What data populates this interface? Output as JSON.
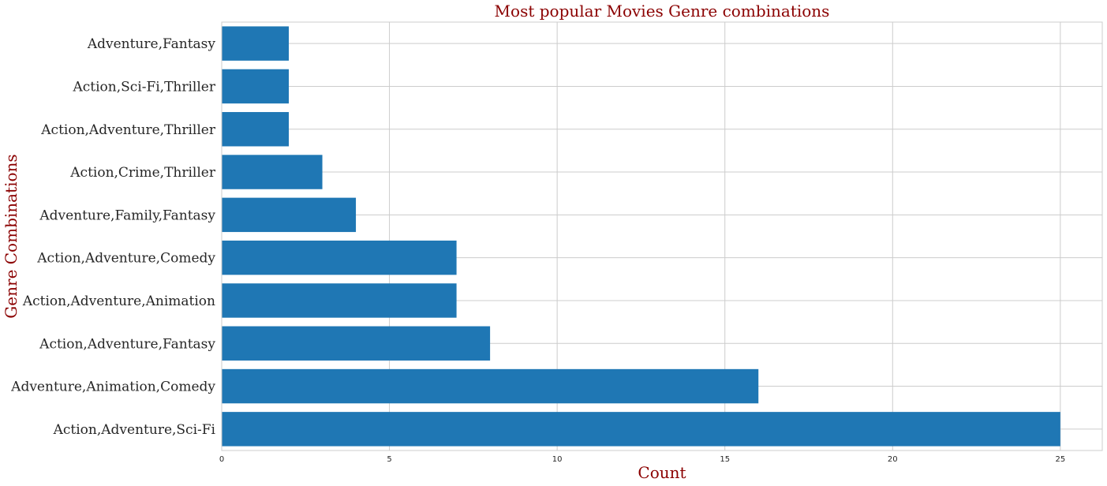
{
  "chart_data": {
    "type": "bar",
    "orientation": "horizontal",
    "title": "Most popular Movies Genre combinations",
    "xlabel": "Count",
    "ylabel": "Genre Combinations",
    "categories": [
      "Action,Adventure,Sci-Fi",
      "Adventure,Animation,Comedy",
      "Action,Adventure,Fantasy",
      "Action,Adventure,Animation",
      "Action,Adventure,Comedy",
      "Adventure,Family,Fantasy",
      "Action,Crime,Thriller",
      "Action,Adventure,Thriller",
      "Action,Sci-Fi,Thriller",
      "Adventure,Fantasy"
    ],
    "values": [
      25,
      16,
      8,
      7,
      7,
      4,
      3,
      2,
      2,
      2
    ],
    "xlim": [
      0,
      26.25
    ],
    "xticks": [
      0,
      5,
      10,
      15,
      20,
      25
    ],
    "grid": true,
    "colors": {
      "bar": "#1f77b4",
      "title": "#8b0000",
      "axis_label": "#8b0000"
    }
  }
}
